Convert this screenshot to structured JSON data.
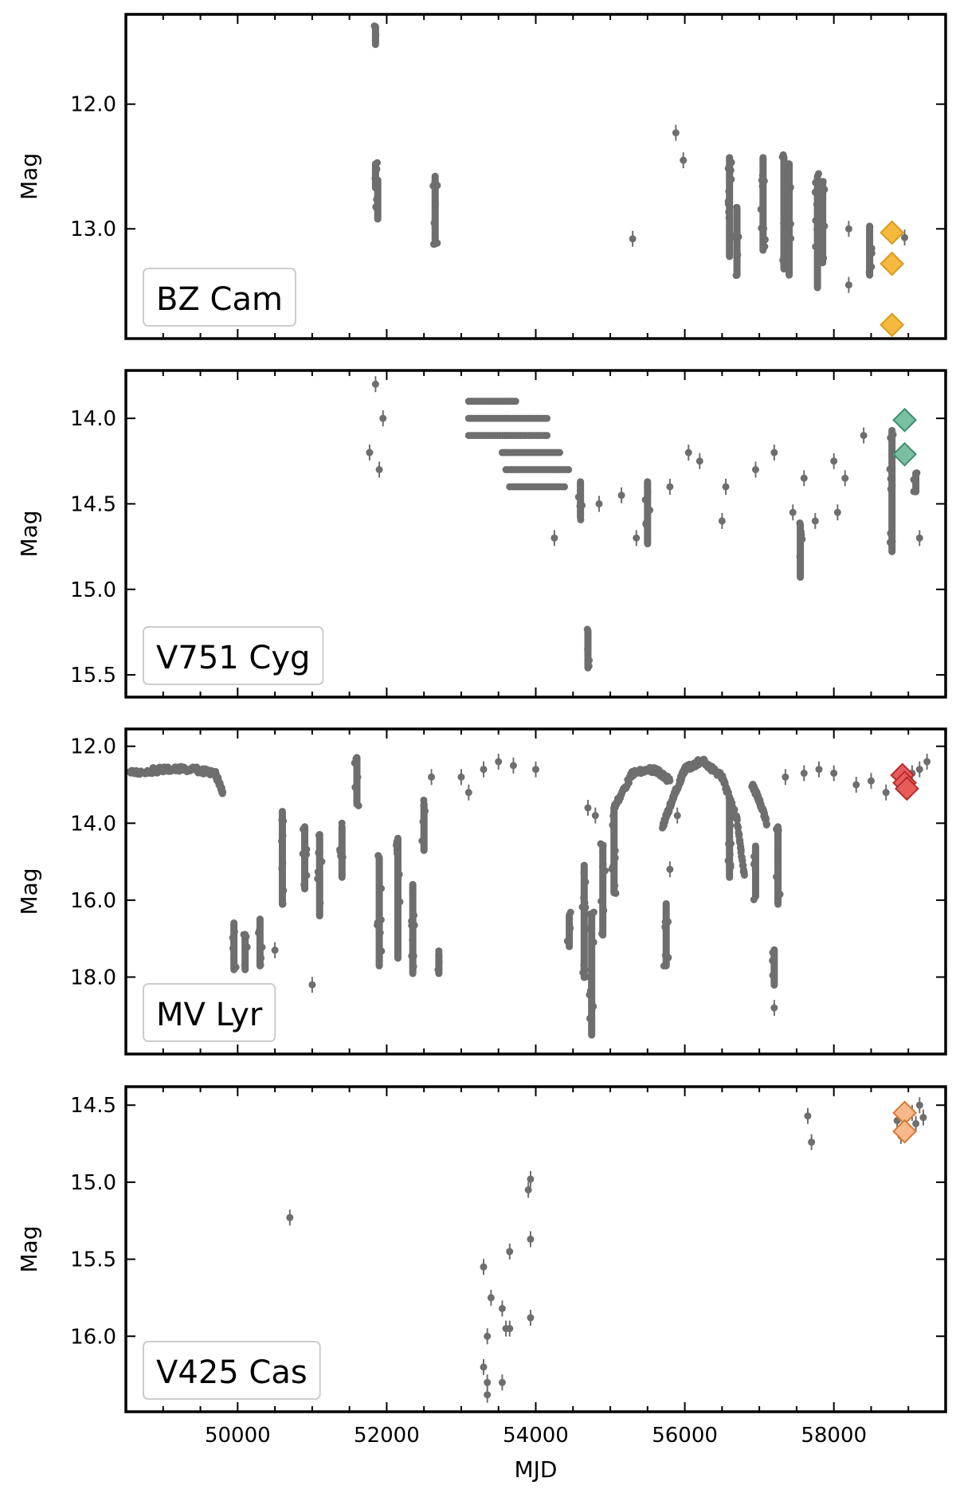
{
  "chart_data": [
    {
      "type": "scatter",
      "label": "BZ Cam",
      "ylabel": "Mag",
      "xlabel": "",
      "xlim": [
        48500,
        59500
      ],
      "ylim": [
        13.88,
        11.28
      ],
      "y_inverted": true,
      "xticks": [
        50000,
        52000,
        54000,
        56000,
        58000
      ],
      "yticks": [
        12.0,
        13.0
      ],
      "ytick_labels": [
        "12.0",
        "13.0"
      ],
      "marker_color": "#6e6e6e",
      "highlight_color": "#f5b93d",
      "highlight_edge": "#d99a1a",
      "obs_columns": [
        {
          "x": 51850,
          "y_top": 11.35,
          "y_bottom": 11.55
        },
        {
          "x": 51850,
          "y_top": 12.45,
          "y_bottom": 12.7
        },
        {
          "x": 51880,
          "y_top": 12.58,
          "y_bottom": 12.95
        },
        {
          "x": 52650,
          "y_top": 12.55,
          "y_bottom": 13.15
        },
        {
          "x": 56600,
          "y_top": 12.4,
          "y_bottom": 13.25
        },
        {
          "x": 56700,
          "y_top": 12.8,
          "y_bottom": 13.4
        },
        {
          "x": 57050,
          "y_top": 12.4,
          "y_bottom": 13.2
        },
        {
          "x": 57330,
          "y_top": 12.4,
          "y_bottom": 13.35
        },
        {
          "x": 57400,
          "y_top": 12.45,
          "y_bottom": 13.4
        },
        {
          "x": 57780,
          "y_top": 12.55,
          "y_bottom": 13.5
        },
        {
          "x": 57850,
          "y_top": 12.6,
          "y_bottom": 13.3
        },
        {
          "x": 58480,
          "y_top": 12.95,
          "y_bottom": 13.4
        }
      ],
      "obs_points": [
        {
          "x": 55300,
          "y": 13.08
        },
        {
          "x": 55880,
          "y": 12.23
        },
        {
          "x": 55980,
          "y": 12.45
        },
        {
          "x": 58200,
          "y": 13.0
        },
        {
          "x": 58200,
          "y": 13.45
        },
        {
          "x": 58950,
          "y": 13.07
        },
        {
          "x": 58480,
          "y": 13.15
        }
      ],
      "highlight_points": [
        {
          "x": 58780,
          "y": 13.03
        },
        {
          "x": 58780,
          "y": 13.28
        },
        {
          "x": 58780,
          "y": 13.77
        }
      ]
    },
    {
      "type": "scatter",
      "label": "V751 Cyg",
      "ylabel": "Mag",
      "xlabel": "",
      "xlim": [
        48500,
        59500
      ],
      "ylim": [
        15.63,
        13.72
      ],
      "y_inverted": true,
      "xticks": [
        50000,
        52000,
        54000,
        56000,
        58000
      ],
      "yticks": [
        14.0,
        14.5,
        15.0,
        15.5
      ],
      "ytick_labels": [
        "14.0",
        "14.5",
        "15.0",
        "15.5"
      ],
      "marker_color": "#6e6e6e",
      "highlight_color": "#7bbfa3",
      "highlight_edge": "#3f8f6f",
      "obs_rows": [
        {
          "x_start": 53100,
          "x_end": 53750,
          "y": 13.9
        },
        {
          "x_start": 53100,
          "x_end": 54150,
          "y": 14.0
        },
        {
          "x_start": 53100,
          "x_end": 54150,
          "y": 14.1
        },
        {
          "x_start": 53550,
          "x_end": 54350,
          "y": 14.2
        },
        {
          "x_start": 53600,
          "x_end": 54450,
          "y": 14.3
        },
        {
          "x_start": 53650,
          "x_end": 54400,
          "y": 14.4
        }
      ],
      "obs_columns": [
        {
          "x": 54600,
          "y_top": 14.35,
          "y_bottom": 14.6
        },
        {
          "x": 54700,
          "y_top": 15.22,
          "y_bottom": 15.48
        },
        {
          "x": 55500,
          "y_top": 14.35,
          "y_bottom": 14.75
        },
        {
          "x": 57550,
          "y_top": 14.6,
          "y_bottom": 14.95
        },
        {
          "x": 58780,
          "y_top": 14.05,
          "y_bottom": 14.8
        },
        {
          "x": 59100,
          "y_top": 14.3,
          "y_bottom": 14.45
        }
      ],
      "obs_points": [
        {
          "x": 51770,
          "y": 14.2
        },
        {
          "x": 51850,
          "y": 13.8
        },
        {
          "x": 51900,
          "y": 14.3
        },
        {
          "x": 51950,
          "y": 14.0
        },
        {
          "x": 54250,
          "y": 14.7
        },
        {
          "x": 54850,
          "y": 14.5
        },
        {
          "x": 55150,
          "y": 14.45
        },
        {
          "x": 55350,
          "y": 14.7
        },
        {
          "x": 55800,
          "y": 14.4
        },
        {
          "x": 56050,
          "y": 14.2
        },
        {
          "x": 56200,
          "y": 14.25
        },
        {
          "x": 56500,
          "y": 14.6
        },
        {
          "x": 56550,
          "y": 14.4
        },
        {
          "x": 56950,
          "y": 14.3
        },
        {
          "x": 57200,
          "y": 14.2
        },
        {
          "x": 57450,
          "y": 14.55
        },
        {
          "x": 57600,
          "y": 14.35
        },
        {
          "x": 57750,
          "y": 14.6
        },
        {
          "x": 58000,
          "y": 14.25
        },
        {
          "x": 58050,
          "y": 14.55
        },
        {
          "x": 58150,
          "y": 14.35
        },
        {
          "x": 58400,
          "y": 14.1
        },
        {
          "x": 59150,
          "y": 14.7
        }
      ],
      "highlight_points": [
        {
          "x": 58950,
          "y": 14.01
        },
        {
          "x": 58950,
          "y": 14.21
        }
      ]
    },
    {
      "type": "scatter",
      "label": "MV Lyr",
      "ylabel": "Mag",
      "xlabel": "",
      "xlim": [
        48500,
        59500
      ],
      "ylim": [
        20.0,
        11.55
      ],
      "y_inverted": true,
      "xticks": [
        50000,
        52000,
        54000,
        56000,
        58000
      ],
      "yticks": [
        12.0,
        14.0,
        16.0,
        18.0
      ],
      "ytick_labels": [
        "12.0",
        "14.0",
        "16.0",
        "18.0"
      ],
      "marker_color": "#6e6e6e",
      "highlight_color": "#e85b5b",
      "highlight_edge": "#b52c2c",
      "obs_columns": [
        {
          "x": 49950,
          "y_top": 16.5,
          "y_bottom": 17.9
        },
        {
          "x": 50100,
          "y_top": 16.8,
          "y_bottom": 17.9
        },
        {
          "x": 50300,
          "y_top": 16.4,
          "y_bottom": 17.8
        },
        {
          "x": 50600,
          "y_top": 13.6,
          "y_bottom": 16.2
        },
        {
          "x": 50900,
          "y_top": 14.0,
          "y_bottom": 15.8
        },
        {
          "x": 51100,
          "y_top": 14.2,
          "y_bottom": 16.5
        },
        {
          "x": 51400,
          "y_top": 14.0,
          "y_bottom": 15.5
        },
        {
          "x": 51600,
          "y_top": 12.2,
          "y_bottom": 13.6
        },
        {
          "x": 51900,
          "y_top": 14.8,
          "y_bottom": 17.8
        },
        {
          "x": 52150,
          "y_top": 14.3,
          "y_bottom": 17.6
        },
        {
          "x": 52350,
          "y_top": 15.5,
          "y_bottom": 18.0
        },
        {
          "x": 52500,
          "y_top": 13.4,
          "y_bottom": 14.8
        },
        {
          "x": 52700,
          "y_top": 17.3,
          "y_bottom": 18.0
        },
        {
          "x": 54450,
          "y_top": 16.3,
          "y_bottom": 17.3
        },
        {
          "x": 54650,
          "y_top": 15.0,
          "y_bottom": 18.1
        },
        {
          "x": 54750,
          "y_top": 16.3,
          "y_bottom": 19.6
        },
        {
          "x": 54900,
          "y_top": 14.5,
          "y_bottom": 17.0
        },
        {
          "x": 55050,
          "y_top": 13.5,
          "y_bottom": 15.9
        },
        {
          "x": 55750,
          "y_top": 16.0,
          "y_bottom": 17.8
        },
        {
          "x": 56600,
          "y_top": 13.3,
          "y_bottom": 15.5
        },
        {
          "x": 56950,
          "y_top": 14.5,
          "y_bottom": 16.0
        },
        {
          "x": 57200,
          "y_top": 17.2,
          "y_bottom": 18.3
        },
        {
          "x": 57250,
          "y_top": 14.0,
          "y_bottom": 16.2
        }
      ],
      "obs_curves": [
        {
          "x": [
            48550,
            49000,
            49400,
            49700,
            49800
          ],
          "y": [
            12.7,
            12.6,
            12.6,
            12.7,
            13.2
          ]
        },
        {
          "x": [
            55050,
            55300,
            55600,
            55800
          ],
          "y": [
            13.6,
            12.7,
            12.6,
            12.9
          ]
        },
        {
          "x": [
            55700,
            55850,
            56000,
            56200
          ],
          "y": [
            14.1,
            13.3,
            12.6,
            12.4
          ]
        },
        {
          "x": [
            56250,
            56500,
            56700,
            56800
          ],
          "y": [
            12.4,
            12.8,
            13.9,
            15.4
          ]
        },
        {
          "x": [
            56900,
            57000,
            57100
          ],
          "y": [
            13.0,
            13.4,
            14.0
          ]
        }
      ],
      "obs_points": [
        {
          "x": 52600,
          "y": 12.8
        },
        {
          "x": 53300,
          "y": 12.6
        },
        {
          "x": 53500,
          "y": 12.4
        },
        {
          "x": 53700,
          "y": 12.5
        },
        {
          "x": 54000,
          "y": 12.6
        },
        {
          "x": 53000,
          "y": 12.8
        },
        {
          "x": 53100,
          "y": 13.2
        },
        {
          "x": 54700,
          "y": 13.6
        },
        {
          "x": 54800,
          "y": 13.8
        },
        {
          "x": 55800,
          "y": 15.2
        },
        {
          "x": 55900,
          "y": 13.8
        },
        {
          "x": 57350,
          "y": 12.8
        },
        {
          "x": 57600,
          "y": 12.7
        },
        {
          "x": 57800,
          "y": 12.6
        },
        {
          "x": 58000,
          "y": 12.7
        },
        {
          "x": 58300,
          "y": 13.0
        },
        {
          "x": 58500,
          "y": 12.9
        },
        {
          "x": 58700,
          "y": 13.2
        },
        {
          "x": 59050,
          "y": 12.7
        },
        {
          "x": 59150,
          "y": 12.6
        },
        {
          "x": 59250,
          "y": 12.4
        },
        {
          "x": 57200,
          "y": 18.8
        },
        {
          "x": 51000,
          "y": 18.2
        },
        {
          "x": 50500,
          "y": 17.3
        }
      ],
      "highlight_points": [
        {
          "x": 58920,
          "y": 12.75
        },
        {
          "x": 58950,
          "y": 12.95
        },
        {
          "x": 58980,
          "y": 13.1
        }
      ]
    },
    {
      "type": "scatter",
      "label": "V425 Cas",
      "ylabel": "Mag",
      "xlabel": "MJD",
      "xlim": [
        48500,
        59500
      ],
      "ylim": [
        16.49,
        14.38
      ],
      "y_inverted": true,
      "xticks": [
        50000,
        52000,
        54000,
        56000,
        58000
      ],
      "xtick_labels": [
        "50000",
        "52000",
        "54000",
        "56000",
        "58000"
      ],
      "yticks": [
        14.5,
        15.0,
        15.5,
        16.0
      ],
      "ytick_labels": [
        "14.5",
        "15.0",
        "15.5",
        "16.0"
      ],
      "marker_color": "#6e6e6e",
      "highlight_color": "#f7b98c",
      "highlight_edge": "#d97a35",
      "obs_columns": [],
      "obs_points": [
        {
          "x": 50700,
          "y": 15.23
        },
        {
          "x": 53300,
          "y": 15.55
        },
        {
          "x": 53350,
          "y": 16.0
        },
        {
          "x": 53300,
          "y": 16.2
        },
        {
          "x": 53350,
          "y": 16.3
        },
        {
          "x": 53350,
          "y": 16.38
        },
        {
          "x": 53400,
          "y": 15.75
        },
        {
          "x": 53550,
          "y": 16.3
        },
        {
          "x": 53550,
          "y": 15.82
        },
        {
          "x": 53600,
          "y": 15.95
        },
        {
          "x": 53650,
          "y": 15.95
        },
        {
          "x": 53650,
          "y": 15.45
        },
        {
          "x": 53900,
          "y": 15.05
        },
        {
          "x": 53930,
          "y": 14.98
        },
        {
          "x": 53930,
          "y": 15.37
        },
        {
          "x": 53930,
          "y": 15.88
        },
        {
          "x": 57650,
          "y": 14.57
        },
        {
          "x": 57700,
          "y": 14.74
        },
        {
          "x": 58850,
          "y": 14.6
        },
        {
          "x": 58900,
          "y": 14.7
        },
        {
          "x": 59050,
          "y": 14.55
        },
        {
          "x": 59100,
          "y": 14.62
        },
        {
          "x": 59150,
          "y": 14.5
        },
        {
          "x": 59200,
          "y": 14.58
        }
      ],
      "highlight_points": [
        {
          "x": 58950,
          "y": 14.55
        },
        {
          "x": 58950,
          "y": 14.67
        }
      ]
    }
  ]
}
